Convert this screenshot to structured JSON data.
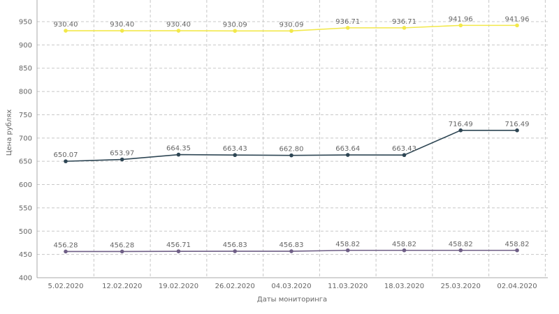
{
  "chart_data": {
    "type": "line",
    "x": [
      "5.02.2020",
      "12.02.2020",
      "19.02.2020",
      "26.02.2020",
      "04.03.2020",
      "11.03.2020",
      "18.03.2020",
      "25.03.2020",
      "02.04.2020"
    ],
    "xlabel": "Даты мониторинга",
    "ylabel": "Цена рублях",
    "ylim": [
      400,
      950
    ],
    "yticks": [
      400,
      450,
      500,
      550,
      600,
      650,
      700,
      750,
      800,
      850,
      900,
      950
    ],
    "grid": true,
    "series": [
      {
        "color": "#f2e84a",
        "values": [
          930.4,
          930.4,
          930.4,
          930.09,
          930.09,
          936.71,
          936.71,
          941.96,
          941.96
        ],
        "labels": [
          "930.40",
          "930.40",
          "930.40",
          "930.09",
          "930.09",
          "936.71",
          "936.71",
          "941.96",
          "941.96"
        ]
      },
      {
        "color": "#2e4654",
        "values": [
          650.07,
          653.97,
          664.35,
          663.43,
          662.8,
          663.64,
          663.43,
          716.49,
          716.49
        ],
        "labels": [
          "650.07",
          "653.97",
          "664.35",
          "663.43",
          "662.80",
          "663.64",
          "663.43",
          "716.49",
          "716.49"
        ]
      },
      {
        "color": "#6f5f86",
        "values": [
          456.28,
          456.28,
          456.71,
          456.83,
          456.83,
          458.82,
          458.82,
          458.82,
          458.82
        ],
        "labels": [
          "456.28",
          "456.28",
          "456.71",
          "456.83",
          "456.83",
          "458.82",
          "458.82",
          "458.82",
          "458.82"
        ]
      }
    ]
  }
}
